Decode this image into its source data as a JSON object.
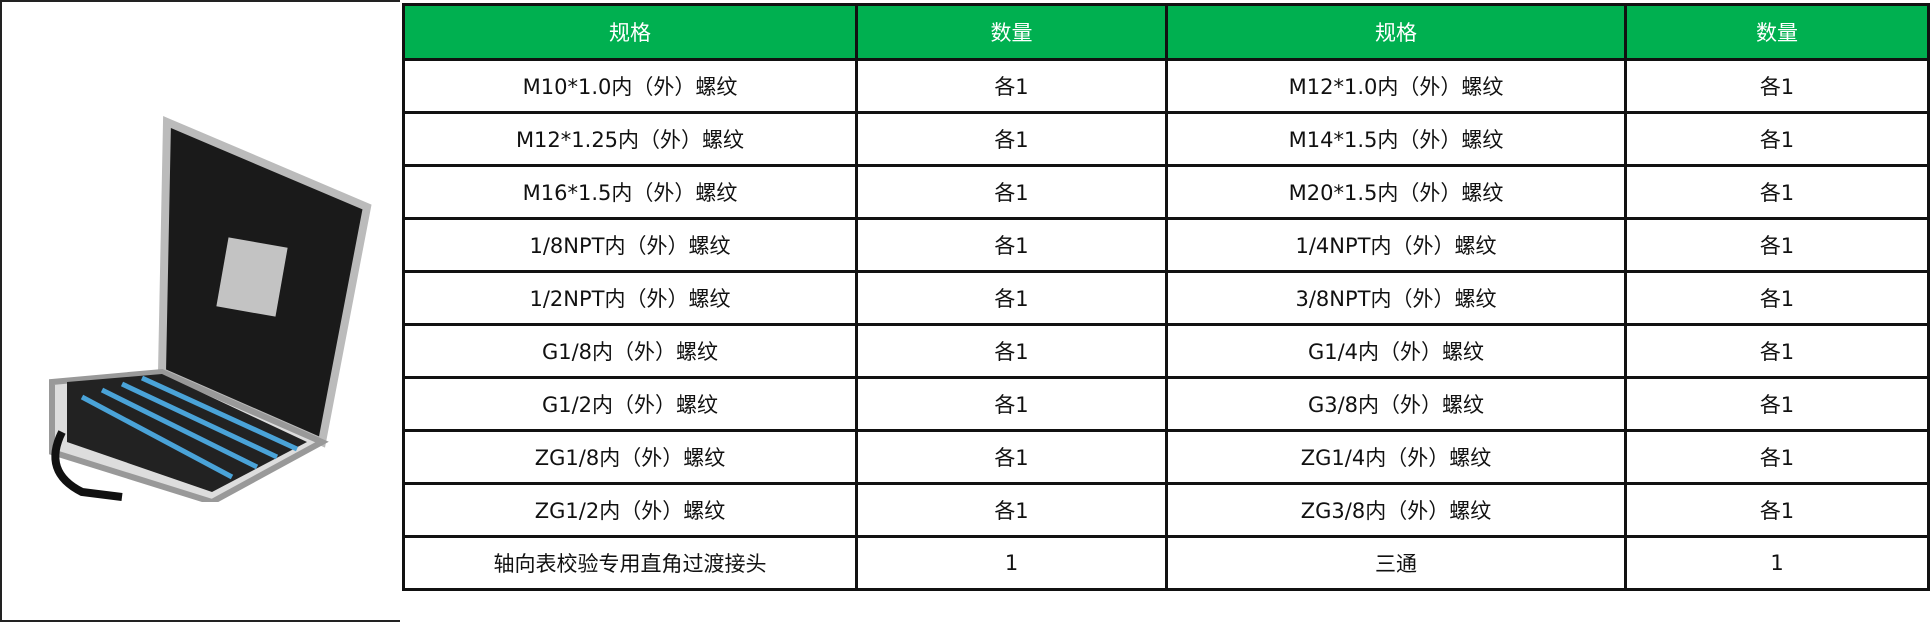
{
  "colors": {
    "header_bg": "#00b050",
    "header_text": "#ffffff",
    "border": "#111111"
  },
  "photo": {
    "icon": "tool-case-photo"
  },
  "headers": [
    "规格",
    "数量",
    "规格",
    "数量"
  ],
  "rows": [
    [
      "M10*1.0内（外）螺纹",
      "各1",
      "M12*1.0内（外）螺纹",
      "各1"
    ],
    [
      "M12*1.25内（外）螺纹",
      "各1",
      "M14*1.5内（外）螺纹",
      "各1"
    ],
    [
      "M16*1.5内（外）螺纹",
      "各1",
      "M20*1.5内（外）螺纹",
      "各1"
    ],
    [
      "1/8NPT内（外）螺纹",
      "各1",
      "1/4NPT内（外）螺纹",
      "各1"
    ],
    [
      "1/2NPT内（外）螺纹",
      "各1",
      "3/8NPT内（外）螺纹",
      "各1"
    ],
    [
      "G1/8内（外）螺纹",
      "各1",
      "G1/4内（外）螺纹",
      "各1"
    ],
    [
      "G1/2内（外）螺纹",
      "各1",
      "G3/8内（外）螺纹",
      "各1"
    ],
    [
      "ZG1/8内（外）螺纹",
      "各1",
      "ZG1/4内（外）螺纹",
      "各1"
    ],
    [
      "ZG1/2内（外）螺纹",
      "各1",
      "ZG3/8内（外）螺纹",
      "各1"
    ],
    [
      "轴向表校验专用直角过渡接头",
      "1",
      "三通",
      "1"
    ]
  ]
}
